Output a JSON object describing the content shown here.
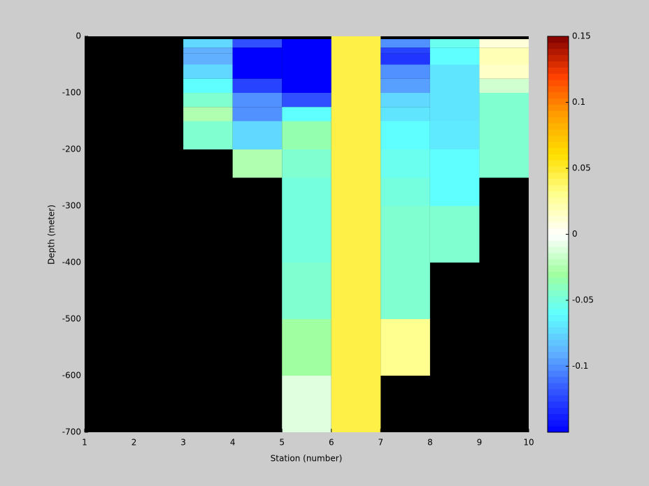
{
  "chart_data": {
    "type": "heatmap",
    "xlabel": "Station (number)",
    "ylabel": "Depth (meter)",
    "xlim": [
      1,
      10
    ],
    "xticks": [
      1,
      2,
      3,
      4,
      5,
      6,
      7,
      8,
      9,
      10
    ],
    "ylim": [
      -700,
      0
    ],
    "yticks": [
      0,
      -100,
      -200,
      -300,
      -400,
      -500,
      -600,
      -700
    ],
    "background": "#000000",
    "clim": [
      -0.15,
      0.15
    ],
    "cticks": [
      0.15,
      0.1,
      0.05,
      0,
      -0.05,
      -0.1
    ],
    "colormap": [
      "#0000ff",
      "#3050ff",
      "#60b0ff",
      "#60ffff",
      "#a0ffa0",
      "#ffffff",
      "#ffff90",
      "#ffe000",
      "#ffa000",
      "#ff4000",
      "#800000"
    ],
    "cells": [
      {
        "x": [
          3,
          4
        ],
        "depth": [
          -5,
          -20
        ],
        "value": -0.075
      },
      {
        "x": [
          3,
          4
        ],
        "depth": [
          -20,
          -30
        ],
        "value": -0.09
      },
      {
        "x": [
          3,
          4
        ],
        "depth": [
          -30,
          -50
        ],
        "value": -0.09
      },
      {
        "x": [
          3,
          4
        ],
        "depth": [
          -50,
          -75
        ],
        "value": -0.075
      },
      {
        "x": [
          3,
          4
        ],
        "depth": [
          -75,
          -100
        ],
        "value": -0.06
      },
      {
        "x": [
          3,
          4
        ],
        "depth": [
          -100,
          -125
        ],
        "value": -0.045
      },
      {
        "x": [
          3,
          4
        ],
        "depth": [
          -125,
          -150
        ],
        "value": -0.025
      },
      {
        "x": [
          3,
          4
        ],
        "depth": [
          -150,
          -200
        ],
        "value": -0.045
      },
      {
        "x": [
          4,
          5
        ],
        "depth": [
          -5,
          -20
        ],
        "value": -0.12
      },
      {
        "x": [
          4,
          5
        ],
        "depth": [
          -20,
          -75
        ],
        "value": -0.15
      },
      {
        "x": [
          4,
          5
        ],
        "depth": [
          -75,
          -100
        ],
        "value": -0.125
      },
      {
        "x": [
          4,
          5
        ],
        "depth": [
          -100,
          -125
        ],
        "value": -0.1
      },
      {
        "x": [
          4,
          5
        ],
        "depth": [
          -125,
          -150
        ],
        "value": -0.1
      },
      {
        "x": [
          4,
          5
        ],
        "depth": [
          -150,
          -200
        ],
        "value": -0.075
      },
      {
        "x": [
          4,
          5
        ],
        "depth": [
          -200,
          -250
        ],
        "value": -0.025
      },
      {
        "x": [
          5,
          6
        ],
        "depth": [
          -5,
          -100
        ],
        "value": -0.15
      },
      {
        "x": [
          5,
          6
        ],
        "depth": [
          -100,
          -125
        ],
        "value": -0.12
      },
      {
        "x": [
          5,
          6
        ],
        "depth": [
          -125,
          -150
        ],
        "value": -0.06
      },
      {
        "x": [
          5,
          6
        ],
        "depth": [
          -150,
          -200
        ],
        "value": -0.035
      },
      {
        "x": [
          5,
          6
        ],
        "depth": [
          -200,
          -250
        ],
        "value": -0.045
      },
      {
        "x": [
          5,
          6
        ],
        "depth": [
          -250,
          -400
        ],
        "value": -0.05
      },
      {
        "x": [
          5,
          6
        ],
        "depth": [
          -400,
          -500
        ],
        "value": -0.045
      },
      {
        "x": [
          5,
          6
        ],
        "depth": [
          -500,
          -600
        ],
        "value": -0.03
      },
      {
        "x": [
          5,
          6
        ],
        "depth": [
          -600,
          -700
        ],
        "value": -0.01
      },
      {
        "x": [
          6,
          7
        ],
        "depth": [
          0,
          -700
        ],
        "value": 0.045
      },
      {
        "x": [
          7,
          8
        ],
        "depth": [
          -5,
          -20
        ],
        "value": -0.1
      },
      {
        "x": [
          7,
          8
        ],
        "depth": [
          -20,
          -30
        ],
        "value": -0.125
      },
      {
        "x": [
          7,
          8
        ],
        "depth": [
          -30,
          -50
        ],
        "value": -0.13
      },
      {
        "x": [
          7,
          8
        ],
        "depth": [
          -50,
          -75
        ],
        "value": -0.1
      },
      {
        "x": [
          7,
          8
        ],
        "depth": [
          -75,
          -100
        ],
        "value": -0.095
      },
      {
        "x": [
          7,
          8
        ],
        "depth": [
          -100,
          -125
        ],
        "value": -0.075
      },
      {
        "x": [
          7,
          8
        ],
        "depth": [
          -125,
          -150
        ],
        "value": -0.07
      },
      {
        "x": [
          7,
          8
        ],
        "depth": [
          -150,
          -200
        ],
        "value": -0.06
      },
      {
        "x": [
          7,
          8
        ],
        "depth": [
          -200,
          -250
        ],
        "value": -0.055
      },
      {
        "x": [
          7,
          8
        ],
        "depth": [
          -250,
          -300
        ],
        "value": -0.05
      },
      {
        "x": [
          7,
          8
        ],
        "depth": [
          -300,
          -500
        ],
        "value": -0.045
      },
      {
        "x": [
          7,
          8
        ],
        "depth": [
          -500,
          -600
        ],
        "value": 0.03
      },
      {
        "x": [
          8,
          9
        ],
        "depth": [
          -5,
          -20
        ],
        "value": -0.055
      },
      {
        "x": [
          8,
          9
        ],
        "depth": [
          -20,
          -50
        ],
        "value": -0.06
      },
      {
        "x": [
          8,
          9
        ],
        "depth": [
          -50,
          -150
        ],
        "value": -0.07
      },
      {
        "x": [
          8,
          9
        ],
        "depth": [
          -150,
          -200
        ],
        "value": -0.068
      },
      {
        "x": [
          8,
          9
        ],
        "depth": [
          -200,
          -300
        ],
        "value": -0.06
      },
      {
        "x": [
          8,
          9
        ],
        "depth": [
          -300,
          -400
        ],
        "value": -0.045
      },
      {
        "x": [
          9,
          10
        ],
        "depth": [
          -5,
          -20
        ],
        "value": 0.01
      },
      {
        "x": [
          9,
          10
        ],
        "depth": [
          -20,
          -50
        ],
        "value": 0.02
      },
      {
        "x": [
          9,
          10
        ],
        "depth": [
          -50,
          -75
        ],
        "value": 0.015
      },
      {
        "x": [
          9,
          10
        ],
        "depth": [
          -75,
          -100
        ],
        "value": -0.015
      },
      {
        "x": [
          9,
          10
        ],
        "depth": [
          -100,
          -250
        ],
        "value": -0.045
      }
    ]
  }
}
